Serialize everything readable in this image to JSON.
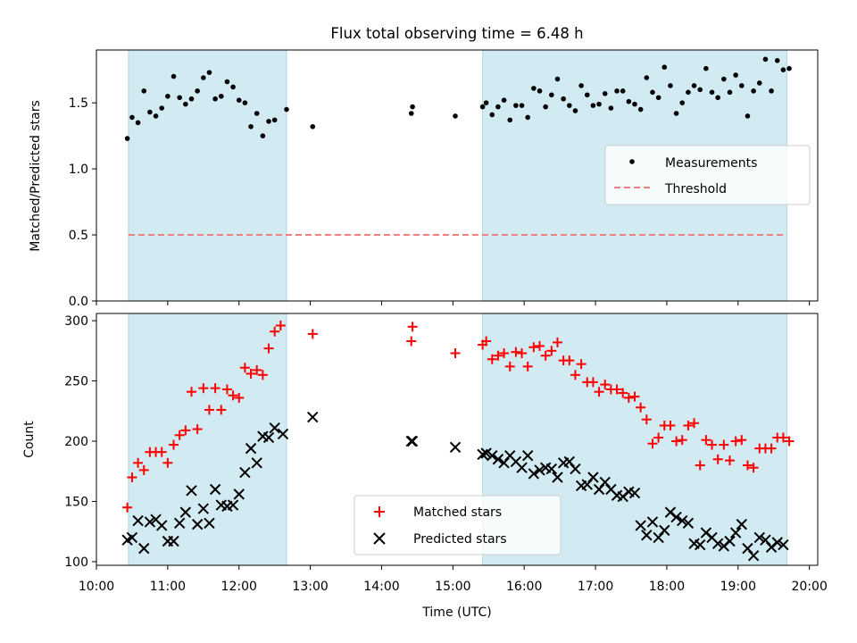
{
  "figure": {
    "title": "Flux total observing time = 6.48 h",
    "xlabel": "Time (UTC)",
    "x_tick_labels": [
      "10:00",
      "11:00",
      "12:00",
      "13:00",
      "14:00",
      "15:00",
      "16:00",
      "17:00",
      "18:00",
      "19:00",
      "20:00"
    ],
    "shaded_color": "#add8e6"
  },
  "chart_data": [
    {
      "type": "scatter",
      "panel": "top",
      "ylabel": "Matched/Predicted stars",
      "ylim": [
        0,
        1.9
      ],
      "yticks": [
        "0.0",
        "0.5",
        "1.0",
        "1.5"
      ],
      "xlim": [
        "10:00",
        "20:07"
      ],
      "shaded_intervals": [
        [
          "10:27",
          "12:40"
        ],
        [
          "15:25",
          "19:41"
        ]
      ],
      "legend_position": "center-right",
      "threshold": {
        "name": "Threshold",
        "value": 0.5,
        "x_range": [
          "10:27",
          "19:41"
        ],
        "color": "#f08080"
      },
      "series": [
        {
          "name": "Measurements",
          "color": "#000000",
          "points": [
            [
              "10:26",
              1.23
            ],
            [
              "10:30",
              1.39
            ],
            [
              "10:35",
              1.35
            ],
            [
              "10:40",
              1.59
            ],
            [
              "10:45",
              1.43
            ],
            [
              "10:50",
              1.4
            ],
            [
              "10:55",
              1.46
            ],
            [
              "11:00",
              1.55
            ],
            [
              "11:05",
              1.7
            ],
            [
              "11:10",
              1.54
            ],
            [
              "11:15",
              1.49
            ],
            [
              "11:20",
              1.53
            ],
            [
              "11:25",
              1.59
            ],
            [
              "11:30",
              1.69
            ],
            [
              "11:35",
              1.73
            ],
            [
              "11:40",
              1.53
            ],
            [
              "11:45",
              1.55
            ],
            [
              "11:50",
              1.66
            ],
            [
              "11:55",
              1.62
            ],
            [
              "12:00",
              1.52
            ],
            [
              "12:05",
              1.5
            ],
            [
              "12:10",
              1.32
            ],
            [
              "12:15",
              1.42
            ],
            [
              "12:20",
              1.25
            ],
            [
              "12:25",
              1.36
            ],
            [
              "12:30",
              1.37
            ],
            [
              "12:40",
              1.45
            ],
            [
              "13:02",
              1.32
            ],
            [
              "14:25",
              1.42
            ],
            [
              "14:26",
              1.47
            ],
            [
              "15:02",
              1.4
            ],
            [
              "15:25",
              1.47
            ],
            [
              "15:28",
              1.5
            ],
            [
              "15:33",
              1.41
            ],
            [
              "15:38",
              1.47
            ],
            [
              "15:43",
              1.52
            ],
            [
              "15:48",
              1.37
            ],
            [
              "15:53",
              1.48
            ],
            [
              "15:58",
              1.48
            ],
            [
              "16:03",
              1.39
            ],
            [
              "16:08",
              1.61
            ],
            [
              "16:13",
              1.59
            ],
            [
              "16:18",
              1.47
            ],
            [
              "16:23",
              1.56
            ],
            [
              "16:28",
              1.68
            ],
            [
              "16:33",
              1.53
            ],
            [
              "16:38",
              1.48
            ],
            [
              "16:43",
              1.44
            ],
            [
              "16:48",
              1.63
            ],
            [
              "16:53",
              1.56
            ],
            [
              "16:58",
              1.48
            ],
            [
              "17:03",
              1.49
            ],
            [
              "17:08",
              1.57
            ],
            [
              "17:13",
              1.46
            ],
            [
              "17:18",
              1.59
            ],
            [
              "17:23",
              1.59
            ],
            [
              "17:28",
              1.51
            ],
            [
              "17:33",
              1.49
            ],
            [
              "17:38",
              1.45
            ],
            [
              "17:43",
              1.69
            ],
            [
              "17:48",
              1.58
            ],
            [
              "17:53",
              1.54
            ],
            [
              "17:58",
              1.77
            ],
            [
              "18:03",
              1.63
            ],
            [
              "18:08",
              1.42
            ],
            [
              "18:13",
              1.5
            ],
            [
              "18:18",
              1.58
            ],
            [
              "18:23",
              1.63
            ],
            [
              "18:28",
              1.6
            ],
            [
              "18:33",
              1.76
            ],
            [
              "18:38",
              1.58
            ],
            [
              "18:43",
              1.54
            ],
            [
              "18:48",
              1.68
            ],
            [
              "18:53",
              1.58
            ],
            [
              "18:58",
              1.71
            ],
            [
              "19:03",
              1.63
            ],
            [
              "19:08",
              1.4
            ],
            [
              "19:13",
              1.59
            ],
            [
              "19:18",
              1.65
            ],
            [
              "19:23",
              1.83
            ],
            [
              "19:28",
              1.59
            ],
            [
              "19:33",
              1.82
            ],
            [
              "19:38",
              1.75
            ],
            [
              "19:43",
              1.76
            ]
          ]
        }
      ]
    },
    {
      "type": "scatter",
      "panel": "bottom",
      "ylabel": "Count",
      "ylim": [
        97,
        306
      ],
      "yticks": [
        "100",
        "150",
        "200",
        "250",
        "300"
      ],
      "xlim": [
        "10:00",
        "20:07"
      ],
      "shaded_intervals": [
        [
          "10:27",
          "12:40"
        ],
        [
          "15:25",
          "19:41"
        ]
      ],
      "legend_position": "bottom-center",
      "series": [
        {
          "name": "Matched stars",
          "marker": "+",
          "color": "#ff0000",
          "points": [
            [
              "10:26",
              145
            ],
            [
              "10:30",
              170
            ],
            [
              "10:35",
              182
            ],
            [
              "10:40",
              176
            ],
            [
              "10:45",
              191
            ],
            [
              "10:50",
              191
            ],
            [
              "10:55",
              191
            ],
            [
              "11:00",
              182
            ],
            [
              "11:05",
              197
            ],
            [
              "11:10",
              205
            ],
            [
              "11:15",
              209
            ],
            [
              "11:20",
              241
            ],
            [
              "11:25",
              210
            ],
            [
              "11:30",
              244
            ],
            [
              "11:35",
              226
            ],
            [
              "11:40",
              244
            ],
            [
              "11:45",
              226
            ],
            [
              "11:50",
              243
            ],
            [
              "11:55",
              238
            ],
            [
              "12:00",
              236
            ],
            [
              "12:05",
              261
            ],
            [
              "12:10",
              256
            ],
            [
              "12:15",
              259
            ],
            [
              "12:20",
              255
            ],
            [
              "12:25",
              277
            ],
            [
              "12:30",
              291
            ],
            [
              "12:35",
              296
            ],
            [
              "13:02",
              289
            ],
            [
              "14:25",
              283
            ],
            [
              "14:26",
              295
            ],
            [
              "15:02",
              273
            ],
            [
              "15:25",
              280
            ],
            [
              "15:28",
              283
            ],
            [
              "15:33",
              268
            ],
            [
              "15:38",
              271
            ],
            [
              "15:43",
              273
            ],
            [
              "15:48",
              262
            ],
            [
              "15:53",
              274
            ],
            [
              "15:58",
              273
            ],
            [
              "16:03",
              262
            ],
            [
              "16:08",
              278
            ],
            [
              "16:13",
              279
            ],
            [
              "16:18",
              271
            ],
            [
              "16:23",
              275
            ],
            [
              "16:28",
              282
            ],
            [
              "16:33",
              267
            ],
            [
              "16:38",
              267
            ],
            [
              "16:43",
              255
            ],
            [
              "16:48",
              264
            ],
            [
              "16:53",
              249
            ],
            [
              "16:58",
              249
            ],
            [
              "17:03",
              241
            ],
            [
              "17:08",
              247
            ],
            [
              "17:13",
              243
            ],
            [
              "17:18",
              243
            ],
            [
              "17:23",
              240
            ],
            [
              "17:28",
              236
            ],
            [
              "17:33",
              237
            ],
            [
              "17:38",
              228
            ],
            [
              "17:43",
              218
            ],
            [
              "17:48",
              198
            ],
            [
              "17:53",
              203
            ],
            [
              "17:58",
              213
            ],
            [
              "18:03",
              213
            ],
            [
              "18:08",
              200
            ],
            [
              "18:13",
              201
            ],
            [
              "18:18",
              213
            ],
            [
              "18:23",
              215
            ],
            [
              "18:28",
              180
            ],
            [
              "18:33",
              201
            ],
            [
              "18:38",
              197
            ],
            [
              "18:43",
              185
            ],
            [
              "18:48",
              197
            ],
            [
              "18:53",
              184
            ],
            [
              "18:58",
              200
            ],
            [
              "19:03",
              201
            ],
            [
              "19:08",
              180
            ],
            [
              "19:13",
              178
            ],
            [
              "19:18",
              194
            ],
            [
              "19:23",
              194
            ],
            [
              "19:28",
              194
            ],
            [
              "19:33",
              203
            ],
            [
              "19:38",
              203
            ],
            [
              "19:43",
              200
            ]
          ]
        },
        {
          "name": "Predicted stars",
          "marker": "x",
          "color": "#000000",
          "points": [
            [
              "10:26",
              118
            ],
            [
              "10:30",
              120
            ],
            [
              "10:35",
              134
            ],
            [
              "10:40",
              111
            ],
            [
              "10:45",
              133
            ],
            [
              "10:50",
              135
            ],
            [
              "10:55",
              130
            ],
            [
              "11:00",
              117
            ],
            [
              "11:05",
              117
            ],
            [
              "11:10",
              132
            ],
            [
              "11:15",
              141
            ],
            [
              "11:20",
              159
            ],
            [
              "11:25",
              131
            ],
            [
              "11:30",
              144
            ],
            [
              "11:35",
              132
            ],
            [
              "11:40",
              160
            ],
            [
              "11:45",
              147
            ],
            [
              "11:50",
              146
            ],
            [
              "11:55",
              147
            ],
            [
              "12:00",
              156
            ],
            [
              "12:05",
              174
            ],
            [
              "12:10",
              194
            ],
            [
              "12:15",
              182
            ],
            [
              "12:20",
              204
            ],
            [
              "12:25",
              203
            ],
            [
              "12:30",
              211
            ],
            [
              "12:37",
              206
            ],
            [
              "13:02",
              220
            ],
            [
              "14:25",
              200
            ],
            [
              "14:26",
              200
            ],
            [
              "15:02",
              195
            ],
            [
              "15:25",
              189
            ],
            [
              "15:28",
              190
            ],
            [
              "15:33",
              188
            ],
            [
              "15:38",
              185
            ],
            [
              "15:43",
              182
            ],
            [
              "15:48",
              188
            ],
            [
              "15:53",
              183
            ],
            [
              "15:58",
              178
            ],
            [
              "16:03",
              188
            ],
            [
              "16:08",
              173
            ],
            [
              "16:13",
              176
            ],
            [
              "16:18",
              178
            ],
            [
              "16:23",
              177
            ],
            [
              "16:28",
              170
            ],
            [
              "16:33",
              182
            ],
            [
              "16:38",
              183
            ],
            [
              "16:43",
              177
            ],
            [
              "16:48",
              163
            ],
            [
              "16:53",
              164
            ],
            [
              "16:58",
              170
            ],
            [
              "17:03",
              160
            ],
            [
              "17:08",
              166
            ],
            [
              "17:13",
              160
            ],
            [
              "17:18",
              155
            ],
            [
              "17:23",
              154
            ],
            [
              "17:28",
              158
            ],
            [
              "17:33",
              157
            ],
            [
              "17:38",
              130
            ],
            [
              "17:43",
              122
            ],
            [
              "17:48",
              133
            ],
            [
              "17:53",
              120
            ],
            [
              "17:58",
              126
            ],
            [
              "18:03",
              141
            ],
            [
              "18:08",
              137
            ],
            [
              "18:13",
              134
            ],
            [
              "18:18",
              132
            ],
            [
              "18:23",
              115
            ],
            [
              "18:28",
              114
            ],
            [
              "18:33",
              124
            ],
            [
              "18:38",
              120
            ],
            [
              "18:43",
              115
            ],
            [
              "18:48",
              113
            ],
            [
              "18:53",
              117
            ],
            [
              "18:58",
              124
            ],
            [
              "19:03",
              131
            ],
            [
              "19:08",
              111
            ],
            [
              "19:13",
              105
            ],
            [
              "19:18",
              120
            ],
            [
              "19:23",
              118
            ],
            [
              "19:28",
              112
            ],
            [
              "19:33",
              116
            ],
            [
              "19:38",
              114
            ]
          ]
        }
      ]
    }
  ]
}
